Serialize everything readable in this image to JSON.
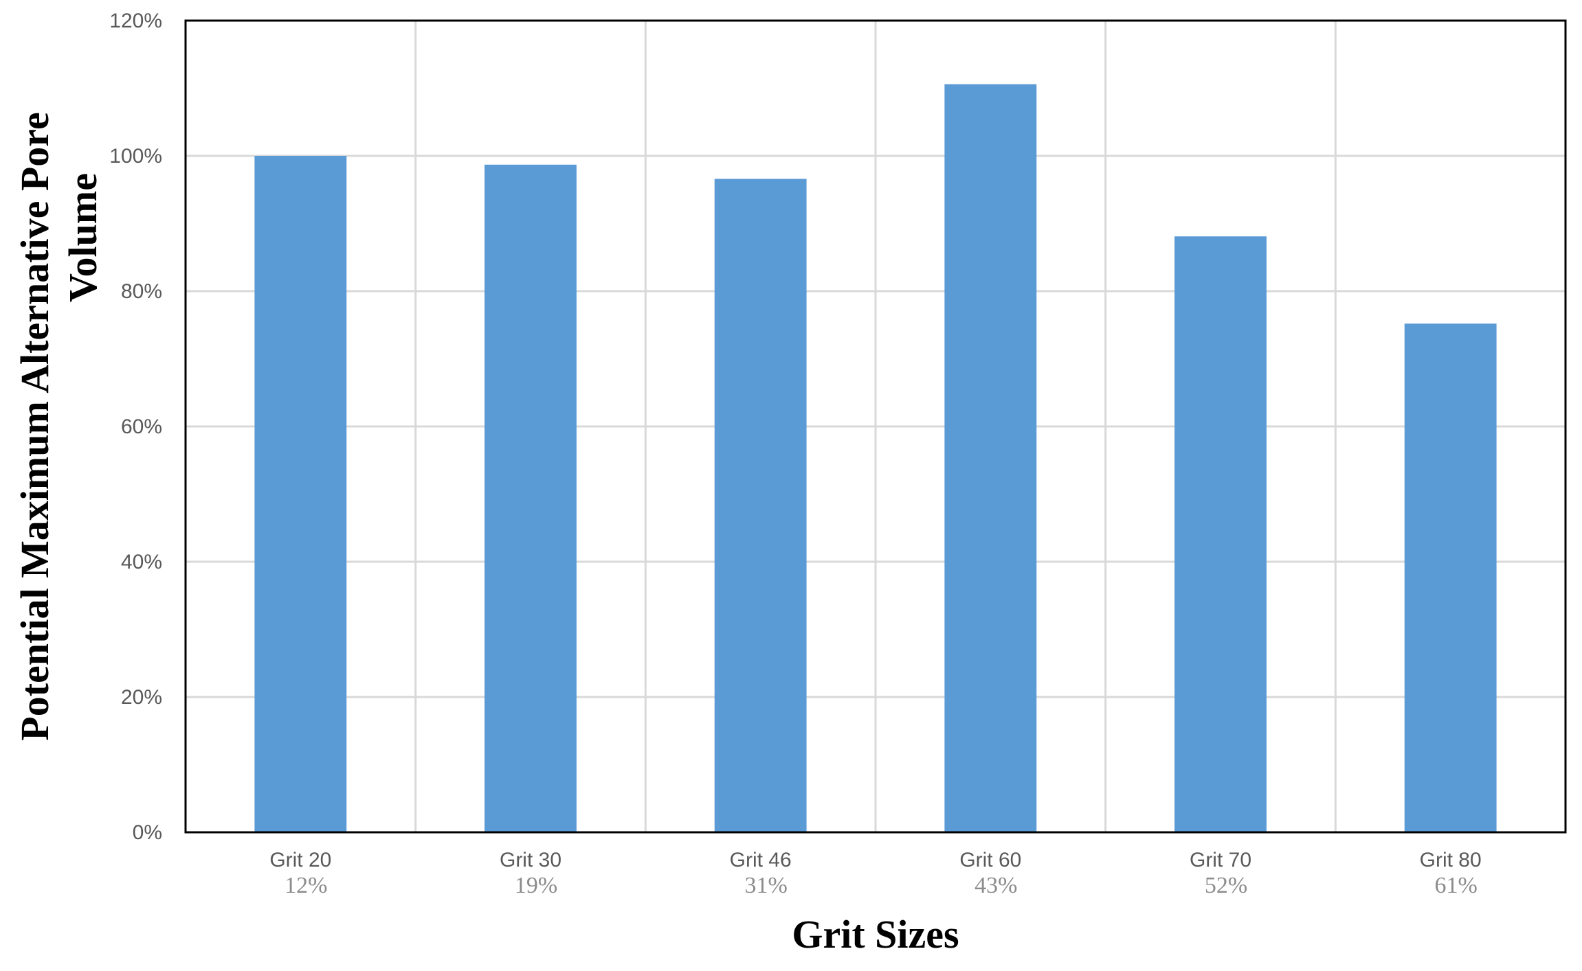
{
  "chart_data": {
    "type": "bar",
    "categories": [
      "Grit 20",
      "Grit 30",
      "Grit 46",
      "Grit 60",
      "Grit 70",
      "Grit 80"
    ],
    "category_sublabels": [
      "12%",
      "19%",
      "31%",
      "43%",
      "52%",
      "61%"
    ],
    "values": [
      100,
      98.7,
      96.6,
      110.6,
      88.1,
      75.2
    ],
    "value_format": "percent",
    "xlabel": "Grit Sizes",
    "ylabel_lines": [
      "Potential Maximum Alternative Pore",
      "Volume"
    ],
    "ylim": [
      0,
      120
    ],
    "yticks": [
      0,
      20,
      40,
      60,
      80,
      100,
      120
    ],
    "ytick_labels": [
      "0%",
      "20%",
      "40%",
      "60%",
      "80%",
      "100%",
      "120%"
    ],
    "grid": {
      "horizontal": true,
      "vertical": true
    },
    "bar_color": "#5b9bd5",
    "grid_color": "#d9d9d9",
    "axis_color": "#000000"
  }
}
